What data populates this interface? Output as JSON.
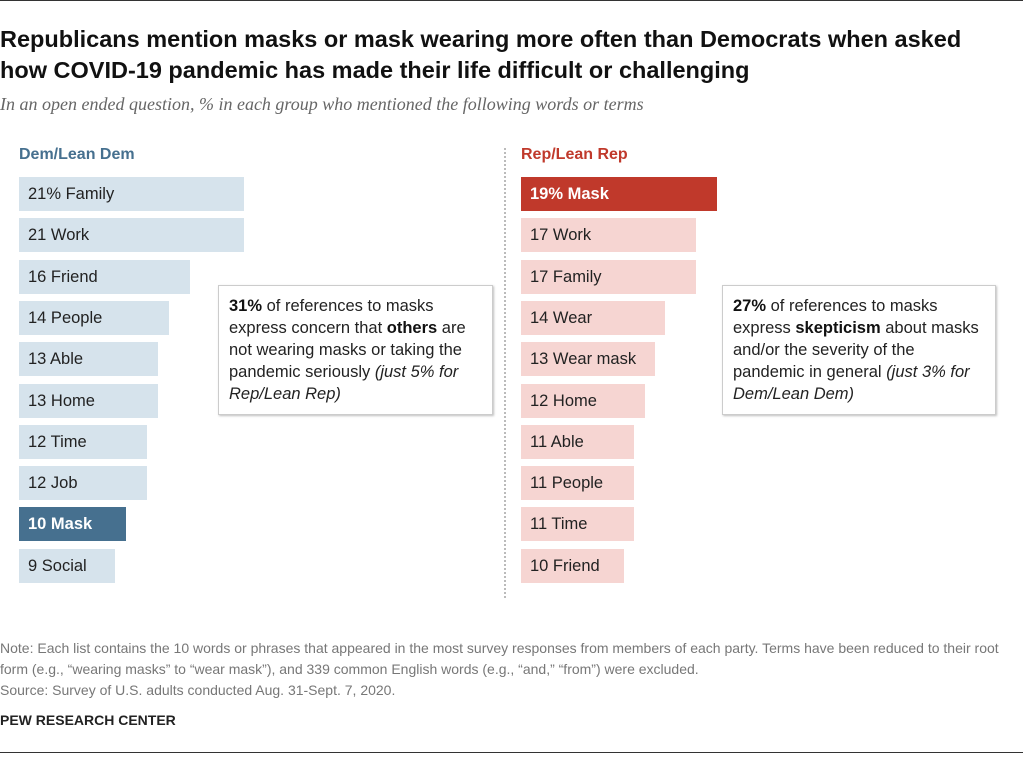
{
  "title": "Republicans mention masks or mask wearing more often than Democrats when asked how COVID-19 pandemic has made their life difficult or challenging",
  "subtitle": "In an open ended question, % in each group who mentioned the following words or terms",
  "chart_data": [
    {
      "type": "bar",
      "orientation": "horizontal",
      "title": "Dem/Lean Dem",
      "color": "#d6e3ec",
      "highlight_color": "#46708f",
      "categories": [
        "Family",
        "Work",
        "Friend",
        "People",
        "Able",
        "Home",
        "Time",
        "Job",
        "Mask",
        "Social"
      ],
      "values": [
        21,
        21,
        16,
        14,
        13,
        13,
        12,
        12,
        10,
        9
      ],
      "value_labels": [
        "21%",
        "21",
        "16",
        "14",
        "13",
        "13",
        "12",
        "12",
        "10",
        "9"
      ],
      "highlight": "Mask"
    },
    {
      "type": "bar",
      "orientation": "horizontal",
      "title": "Rep/Lean Rep",
      "color": "#f6d5d2",
      "highlight_color": "#c0392b",
      "categories": [
        "Mask",
        "Work",
        "Family",
        "Wear",
        "Wear mask",
        "Home",
        "Able",
        "People",
        "Time",
        "Friend"
      ],
      "values": [
        19,
        17,
        17,
        14,
        13,
        12,
        11,
        11,
        11,
        10
      ],
      "value_labels": [
        "19%",
        "17",
        "17",
        "14",
        "13",
        "12",
        "11",
        "11",
        "11",
        "10"
      ],
      "highlight": "Mask"
    }
  ],
  "annotations": {
    "dem": [
      {
        "t": "31%",
        "s": "b"
      },
      {
        "t": " of references to masks express concern that ",
        "s": ""
      },
      {
        "t": "others",
        "s": "b"
      },
      {
        "t": " are not wearing masks or taking the pandemic seriously ",
        "s": ""
      },
      {
        "t": "(just 5% for Rep/Lean Rep)",
        "s": "i"
      }
    ],
    "rep": [
      {
        "t": "27%",
        "s": "b"
      },
      {
        "t": " of references to masks express ",
        "s": ""
      },
      {
        "t": "skepticism",
        "s": "b"
      },
      {
        "t": " about masks and/or the severity of the pandemic in general ",
        "s": ""
      },
      {
        "t": "(just 3% for Dem/Lean Dem)",
        "s": "i"
      }
    ]
  },
  "footnote": {
    "note": "Note: Each list contains the 10 words or phrases that appeared in the most survey responses from members of each party. Terms have been reduced to their root form (e.g., “wearing masks” to “wear mask”), and 339 common English words (e.g., “and,” “from”) were excluded.",
    "source": "Source: Survey of U.S. adults conducted Aug. 31-Sept. 7, 2020."
  },
  "brand": "PEW RESEARCH CENTER"
}
